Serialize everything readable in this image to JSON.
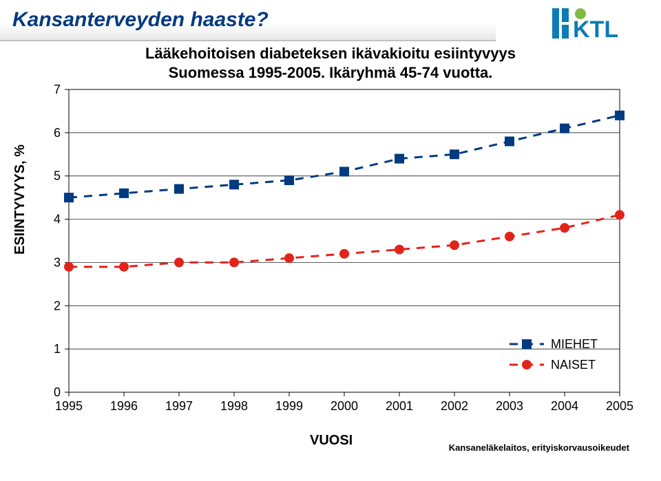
{
  "header": {
    "title": "Kansanterveyden haaste?",
    "title_color": "#003a80",
    "title_fontsize": 30
  },
  "logo": {
    "text": "KTL",
    "bar_color": "#0d7bb5",
    "circle_color": "#7fba42"
  },
  "subtitle": {
    "line1": "Lääkehoitoisen diabeteksen ikävakioitu esiintyvyys",
    "line2": "Suomessa 1995-2005. Ikäryhmä 45-74 vuotta.",
    "fontsize": 22
  },
  "chart": {
    "type": "line",
    "x_categories": [
      "1995",
      "1996",
      "1997",
      "1998",
      "1999",
      "2000",
      "2001",
      "2002",
      "2003",
      "2004",
      "2005"
    ],
    "xlabel": "VUOSI",
    "ylabel": "ESIINTYVYYS, %",
    "ylim": [
      0,
      7
    ],
    "ytick_step": 1,
    "label_fontsize": 20,
    "tick_fontsize": 18,
    "plot_border_color": "#000000",
    "grid_color": "#000000",
    "background_color": "#ffffff",
    "series": [
      {
        "name": "MIEHET",
        "values": [
          4.5,
          4.6,
          4.7,
          4.8,
          4.9,
          5.1,
          5.4,
          5.5,
          5.8,
          6.1,
          6.4
        ],
        "color": "#003a80",
        "marker": "square",
        "marker_size": 14,
        "line_dash": "12 10",
        "line_width": 3
      },
      {
        "name": "NAISET",
        "values": [
          2.9,
          2.9,
          3.0,
          3.0,
          3.1,
          3.2,
          3.3,
          3.4,
          3.6,
          3.8,
          4.1
        ],
        "color": "#e2231a",
        "marker": "circle",
        "marker_size": 14,
        "line_dash": "12 10",
        "line_width": 3
      }
    ],
    "legend": {
      "position": "bottom-right",
      "fontsize": 18,
      "items": [
        "MIEHET",
        "NAISET"
      ]
    }
  },
  "source": "Kansaneläkelaitos, erityiskorvausoikeudet"
}
